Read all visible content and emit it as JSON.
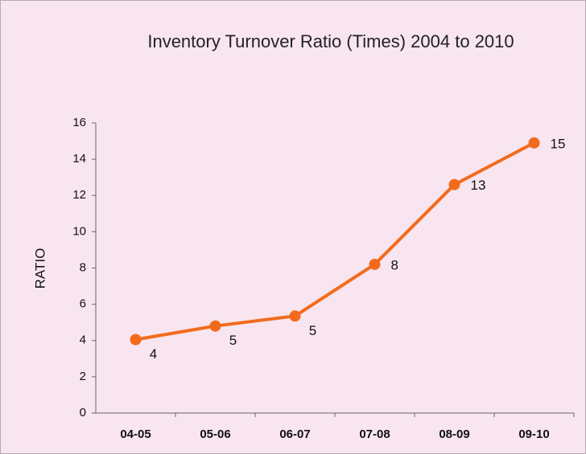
{
  "chart_data": {
    "type": "line",
    "title": "Inventory Turnover Ratio (Times) 2004 to 2010",
    "y_label": "RATIO",
    "categories": [
      "04-05",
      "05-06",
      "06-07",
      "07-08",
      "08-09",
      "09-10"
    ],
    "series": [
      {
        "name": "Inventory Turnover Ratio",
        "color": "#f26b1d",
        "values": [
          4.05,
          4.8,
          5.35,
          8.2,
          12.6,
          14.9
        ],
        "value_labels": [
          "4",
          "5",
          "5",
          "8",
          "13",
          "15"
        ]
      }
    ],
    "ylim": [
      0,
      16
    ],
    "yticks": [
      0,
      2,
      4,
      6,
      8,
      10,
      12,
      14,
      16
    ]
  }
}
